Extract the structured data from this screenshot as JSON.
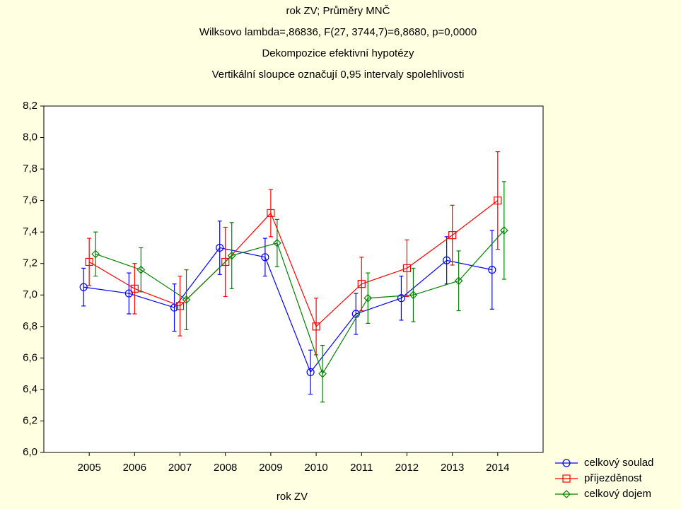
{
  "chart_data": {
    "type": "line_errorbar",
    "title": "rok ZV; Průměry MNČ",
    "subtitles": [
      "Wilksovo lambda=,86836, F(27, 3744,7)=6,8680, p=0,0000",
      "Dekompozice efektivní hypotézy",
      "Vertikální sloupce označují 0,95 intervaly spolehlivosti"
    ],
    "xlabel": "rok ZV",
    "categories": [
      "2005",
      "2006",
      "2007",
      "2008",
      "2009",
      "2010",
      "2011",
      "2012",
      "2013",
      "2014"
    ],
    "ylim": [
      6.0,
      8.2
    ],
    "yticks": [
      {
        "value": 6.0,
        "label": "6,0"
      },
      {
        "value": 6.2,
        "label": "6,2"
      },
      {
        "value": 6.4,
        "label": "6,4"
      },
      {
        "value": 6.6,
        "label": "6,6"
      },
      {
        "value": 6.8,
        "label": "6,8"
      },
      {
        "value": 7.0,
        "label": "7,0"
      },
      {
        "value": 7.2,
        "label": "7,2"
      },
      {
        "value": 7.4,
        "label": "7,4"
      },
      {
        "value": 7.6,
        "label": "7,6"
      },
      {
        "value": 7.8,
        "label": "7,8"
      },
      {
        "value": 8.0,
        "label": "8,0"
      },
      {
        "value": 8.2,
        "label": "8,2"
      }
    ],
    "series": [
      {
        "name": "celkový soulad",
        "color": "#0000ff",
        "marker": "circle",
        "values": [
          7.05,
          7.01,
          6.92,
          7.3,
          7.24,
          6.51,
          6.88,
          6.98,
          7.22,
          7.16
        ],
        "errors": [
          0.12,
          0.13,
          0.15,
          0.17,
          0.12,
          0.14,
          0.13,
          0.14,
          0.15,
          0.25
        ]
      },
      {
        "name": "příjezděnost",
        "color": "#ff0000",
        "marker": "square",
        "values": [
          7.21,
          7.04,
          6.93,
          7.21,
          7.52,
          6.8,
          7.07,
          7.17,
          7.38,
          7.6
        ],
        "errors": [
          0.15,
          0.16,
          0.19,
          0.22,
          0.15,
          0.18,
          0.17,
          0.18,
          0.19,
          0.31
        ]
      },
      {
        "name": "celkový dojem",
        "color": "#008000",
        "marker": "diamond",
        "values": [
          7.26,
          7.16,
          6.97,
          7.25,
          7.33,
          6.5,
          6.98,
          7.0,
          7.09,
          7.41
        ],
        "errors": [
          0.14,
          0.14,
          0.19,
          0.21,
          0.15,
          0.18,
          0.16,
          0.17,
          0.19,
          0.31
        ]
      }
    ]
  }
}
